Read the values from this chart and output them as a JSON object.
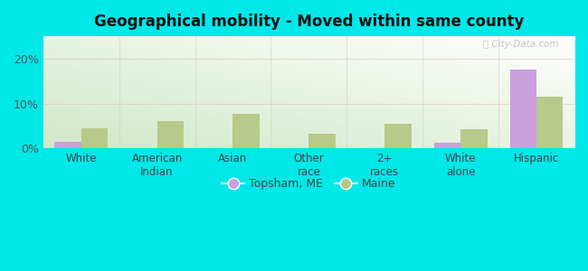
{
  "title": "Geographical mobility - Moved within same county",
  "categories": [
    "White",
    "American\nIndian",
    "Asian",
    "Other\nrace",
    "2+\nraces",
    "White\nalone",
    "Hispanic"
  ],
  "topsham_values": [
    1.5,
    0,
    0,
    0,
    0,
    1.2,
    17.5
  ],
  "maine_values": [
    4.5,
    6.0,
    7.8,
    3.2,
    5.5,
    4.2,
    11.5
  ],
  "topsham_color": "#c9a0dc",
  "maine_color": "#b8c98a",
  "background_color": "#00e8e8",
  "ylabel_ticks": [
    "0%",
    "10%",
    "20%"
  ],
  "yticks": [
    0,
    10,
    20
  ],
  "ylim": [
    0,
    25
  ],
  "legend_labels": [
    "Topsham, ME",
    "Maine"
  ],
  "bar_width": 0.35,
  "grid_color": "#e0b8c0",
  "watermark": "ⓘ City-Data.com"
}
